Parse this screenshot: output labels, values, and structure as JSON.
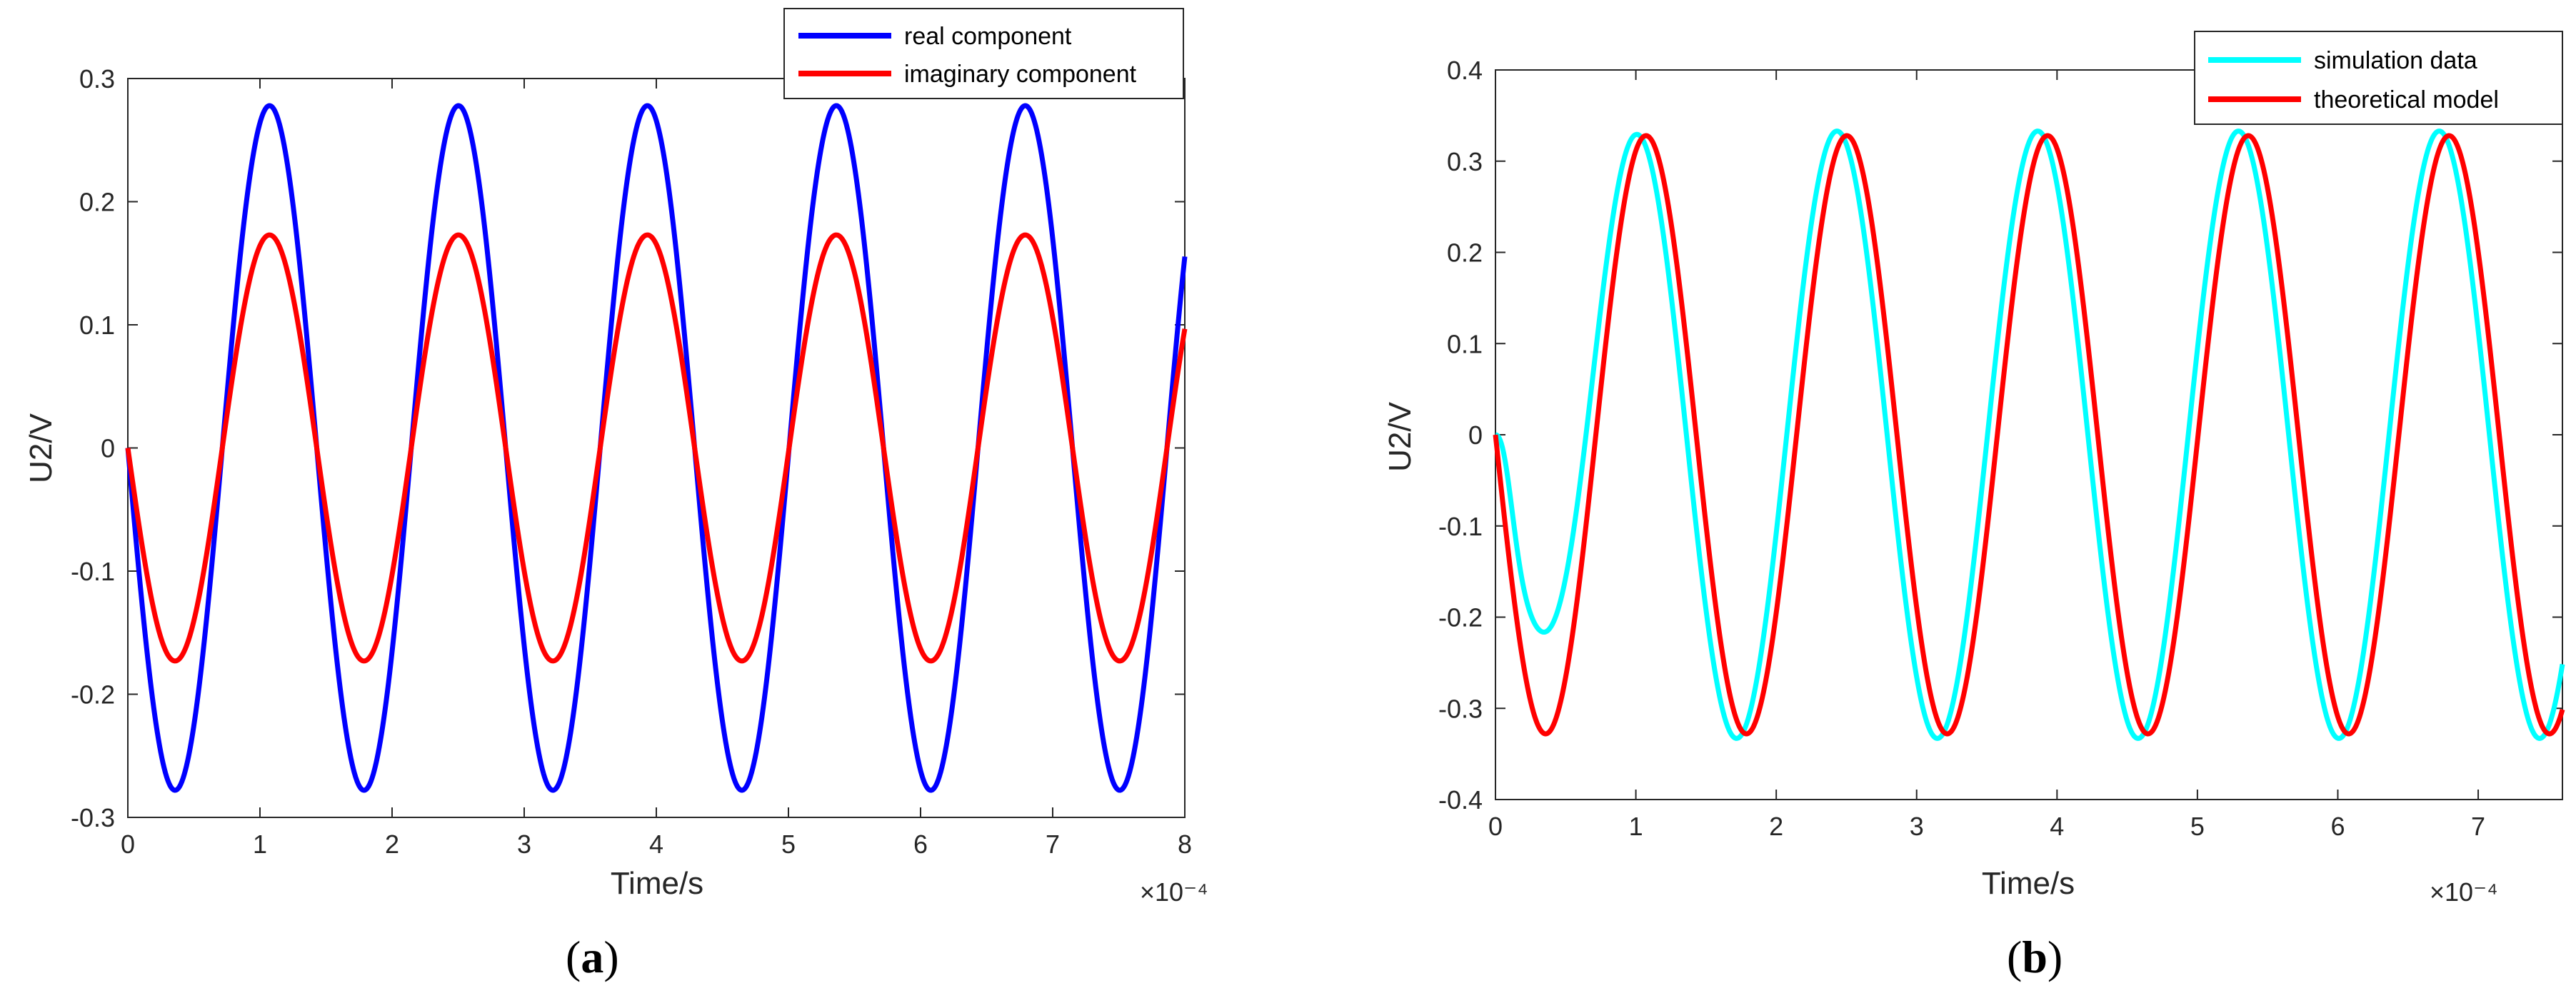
{
  "figures": [
    {
      "panel_letter": "a",
      "exponent_label": "×10⁻⁴"
    },
    {
      "panel_letter": "b",
      "exponent_label": "×10⁻⁴"
    }
  ],
  "chart_data": [
    {
      "type": "line",
      "xlabel": "Time/s",
      "ylabel": "U2/V",
      "x_scale_note": "×10^-4",
      "xlim": [
        0,
        8
      ],
      "ylim": [
        -0.3,
        0.3
      ],
      "xticks": [
        "0",
        "1",
        "2",
        "3",
        "4",
        "5",
        "6",
        "7",
        "8"
      ],
      "yticks": [
        "-0.3",
        "-0.2",
        "-0.1",
        "0",
        "0.1",
        "0.2",
        "0.3"
      ],
      "legend_position": "top-right",
      "series": [
        {
          "name": "real component",
          "color": "#0000ff",
          "amplitude": 0.278,
          "period": 1.43,
          "phase_shift": 0,
          "form": "-A*sin(2*pi*x/T)",
          "x": [
            0,
            0.36,
            1.07,
            1.79,
            2.5,
            3.22,
            3.93,
            4.65,
            5.36,
            6.08,
            6.79,
            7.51,
            8.0
          ],
          "y": [
            0,
            -0.278,
            0.278,
            -0.278,
            0.278,
            -0.278,
            0.278,
            -0.278,
            0.278,
            -0.278,
            0.278,
            -0.278,
            0.16
          ]
        },
        {
          "name": "imaginary component",
          "color": "#ff0000",
          "amplitude": 0.173,
          "period": 1.43,
          "phase_shift": 0,
          "form": "-A*sin(2*pi*x/T)",
          "x": [
            0,
            0.36,
            1.07,
            1.79,
            2.5,
            3.22,
            3.93,
            4.65,
            5.36,
            6.08,
            6.79,
            7.51,
            8.0
          ],
          "y": [
            0,
            -0.173,
            0.173,
            -0.173,
            0.173,
            -0.173,
            0.173,
            -0.173,
            0.173,
            -0.173,
            0.173,
            -0.173,
            0.1
          ]
        }
      ]
    },
    {
      "type": "line",
      "xlabel": "Time/s",
      "ylabel": "U2/V",
      "x_scale_note": "×10^-4",
      "xlim": [
        0,
        7.6
      ],
      "ylim": [
        -0.4,
        0.4
      ],
      "xticks": [
        "0",
        "1",
        "2",
        "3",
        "4",
        "5",
        "6",
        "7"
      ],
      "yticks": [
        "-0.4",
        "-0.3",
        "-0.2",
        "-0.1",
        "0",
        "0.1",
        "0.2",
        "0.3",
        "0.4"
      ],
      "legend_position": "top-right",
      "series": [
        {
          "name": "simulation data",
          "color": "#00ffff",
          "amplitude": 0.333,
          "period": 1.43,
          "form": "damped-start sinusoid",
          "x": [
            0,
            0.06,
            0.42,
            1.0,
            1.72,
            2.44,
            3.15,
            3.87,
            4.58,
            5.3,
            6.01,
            6.73,
            7.44,
            7.6
          ],
          "y": [
            0,
            0,
            -0.175,
            0.333,
            -0.34,
            0.333,
            -0.333,
            0.333,
            -0.333,
            0.333,
            -0.333,
            0.333,
            -0.333,
            -0.26
          ]
        },
        {
          "name": "theoretical model",
          "color": "#ff0000",
          "amplitude": 0.328,
          "period": 1.43,
          "form": "-A*sin(2*pi*x/T)",
          "x": [
            0,
            0.36,
            1.07,
            1.79,
            2.5,
            3.22,
            3.93,
            4.65,
            5.36,
            6.08,
            6.79,
            7.51,
            7.6
          ],
          "y": [
            0,
            -0.328,
            0.328,
            -0.328,
            0.328,
            -0.328,
            0.328,
            -0.328,
            0.328,
            -0.328,
            0.328,
            -0.328,
            -0.3
          ]
        }
      ]
    }
  ]
}
